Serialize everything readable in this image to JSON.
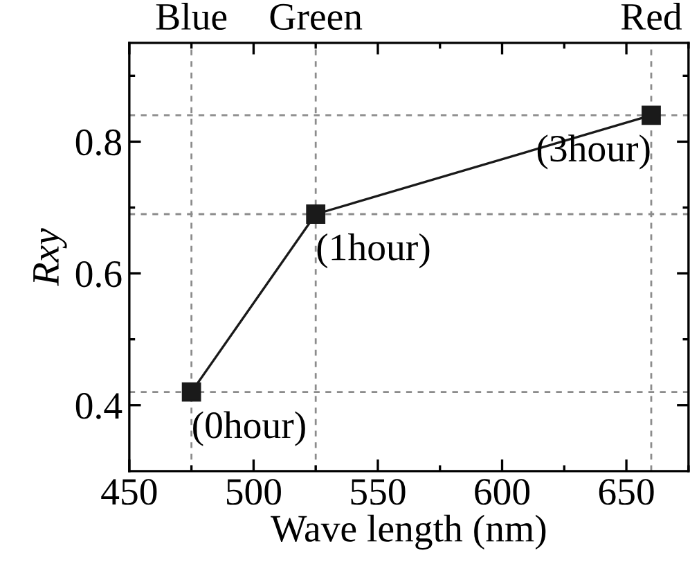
{
  "chart_data": {
    "type": "line",
    "xlabel": "Wave length (nm)",
    "ylabel": "Rxy",
    "x": [
      475,
      525,
      660
    ],
    "series": [
      {
        "color": "#1a1a1a",
        "values": [
          0.42,
          0.69,
          0.84
        ]
      }
    ],
    "marker": "square",
    "line_style": "solid",
    "grid": false,
    "legend": false,
    "xlim": [
      450,
      675
    ],
    "xticks": [
      450,
      500,
      550,
      600,
      650
    ],
    "ylim": [
      0.3,
      0.95
    ],
    "yticks": [
      0.4,
      0.6,
      0.8
    ],
    "ref_lines": [
      {
        "axis": "x",
        "value": 475,
        "label": "Blue",
        "color": "#8c8c8c",
        "line_style": "dashed"
      },
      {
        "axis": "x",
        "value": 525,
        "label": "Green",
        "color": "#8c8c8c",
        "line_style": "dashed"
      },
      {
        "axis": "x",
        "value": 660,
        "label": "Red",
        "color": "#8c8c8c",
        "line_style": "dashed"
      },
      {
        "axis": "y",
        "value": 0.42,
        "color": "#8c8c8c",
        "line_style": "dashed"
      },
      {
        "axis": "y",
        "value": 0.69,
        "color": "#8c8c8c",
        "line_style": "dashed"
      },
      {
        "axis": "y",
        "value": 0.84,
        "color": "#8c8c8c",
        "line_style": "dashed"
      }
    ],
    "annotations": [
      {
        "text": "(0hour)",
        "x": 475,
        "y": 0.42
      },
      {
        "text": "(1hour)",
        "x": 525,
        "y": 0.69
      },
      {
        "text": "(3hour)",
        "x": 660,
        "y": 0.84
      }
    ]
  }
}
